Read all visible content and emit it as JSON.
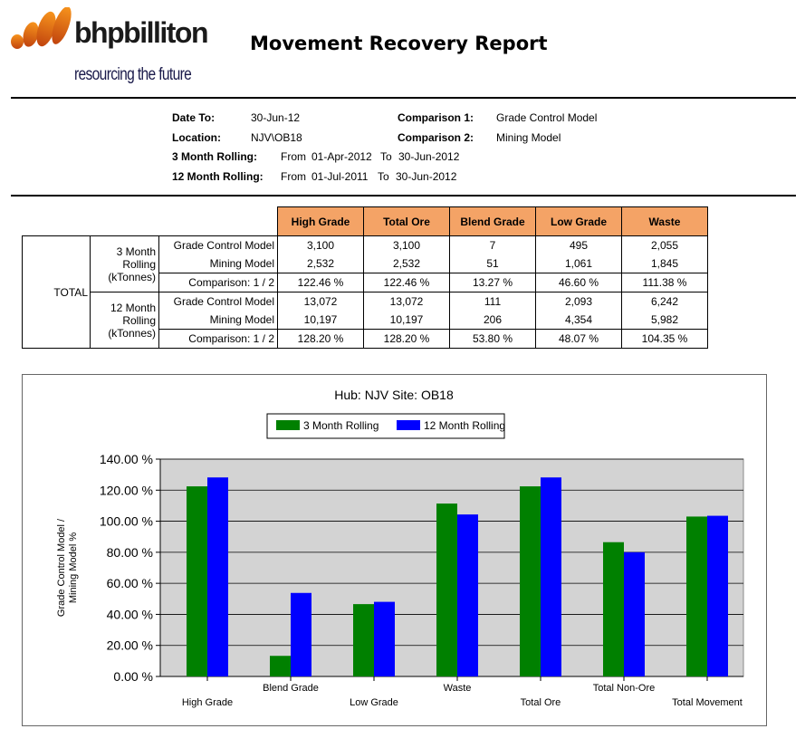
{
  "header": {
    "logo_text": "bhpbilliton",
    "logo_tagline": "resourcing the future",
    "title": "Movement Recovery Report"
  },
  "info": {
    "date_to_label": "Date To:",
    "date_to": "30-Jun-12",
    "location_label": "Location:",
    "location": "NJV\\OB18",
    "rolling3_label": "3 Month Rolling:",
    "rolling3_from_word": "From",
    "rolling3_from": "01-Apr-2012",
    "rolling3_to_word": "To",
    "rolling3_to": "30-Jun-2012",
    "rolling12_label": "12 Month Rolling:",
    "rolling12_from_word": "From",
    "rolling12_from": "01-Jul-2011",
    "rolling12_to_word": "To",
    "rolling12_to": "30-Jun-2012",
    "comparison1_label": "Comparison 1:",
    "comparison1": "Grade Control Model",
    "comparison2_label": "Comparison 2:",
    "comparison2": "Mining Model"
  },
  "table": {
    "columns": [
      "High Grade",
      "Total Ore",
      "Blend Grade",
      "Low Grade",
      "Waste"
    ],
    "total_label": "TOTAL",
    "groups": [
      {
        "label_lines": [
          "3 Month",
          "Rolling",
          "(kTonnes)"
        ],
        "rows": [
          {
            "label": "Grade Control Model",
            "values": [
              "3,100",
              "3,100",
              "7",
              "495",
              "2,055"
            ]
          },
          {
            "label": "Mining Model",
            "values": [
              "2,532",
              "2,532",
              "51",
              "1,061",
              "1,845"
            ]
          },
          {
            "label": "Comparison: 1 / 2",
            "values": [
              "122.46 %",
              "122.46 %",
              "13.27 %",
              "46.60 %",
              "111.38 %"
            ]
          }
        ]
      },
      {
        "label_lines": [
          "12 Month",
          "Rolling",
          "(kTonnes)"
        ],
        "rows": [
          {
            "label": "Grade Control Model",
            "values": [
              "13,072",
              "13,072",
              "111",
              "2,093",
              "6,242"
            ]
          },
          {
            "label": "Mining Model",
            "values": [
              "10,197",
              "10,197",
              "206",
              "4,354",
              "5,982"
            ]
          },
          {
            "label": "Comparison: 1 / 2",
            "values": [
              "128.20 %",
              "128.20 %",
              "53.80 %",
              "48.07 %",
              "104.35 %"
            ]
          }
        ]
      }
    ]
  },
  "chart_data": {
    "type": "bar",
    "title": "Hub: NJV  Site: OB18",
    "ylabel": "Grade Control Model / Mining Model %",
    "xlabel": "",
    "categories": [
      "High Grade",
      "Blend Grade",
      "Low Grade",
      "Waste",
      "Total Ore",
      "Total Non-Ore",
      "Total Movement"
    ],
    "series": [
      {
        "name": "3 Month Rolling",
        "color": "#008000",
        "values": [
          122.46,
          13.27,
          46.6,
          111.38,
          122.46,
          86.5,
          103.0
        ]
      },
      {
        "name": "12 Month Rolling",
        "color": "#0000ff",
        "values": [
          128.2,
          53.8,
          48.07,
          104.35,
          128.2,
          80.0,
          103.5
        ]
      }
    ],
    "ylim": [
      0,
      140
    ],
    "yticks": [
      "0.00 %",
      "20.00 %",
      "40.00 %",
      "60.00 %",
      "80.00 %",
      "100.00 %",
      "120.00 %",
      "140.00 %"
    ],
    "grid": true,
    "legend": "top-center",
    "plot_background": "#d3d3d3"
  }
}
